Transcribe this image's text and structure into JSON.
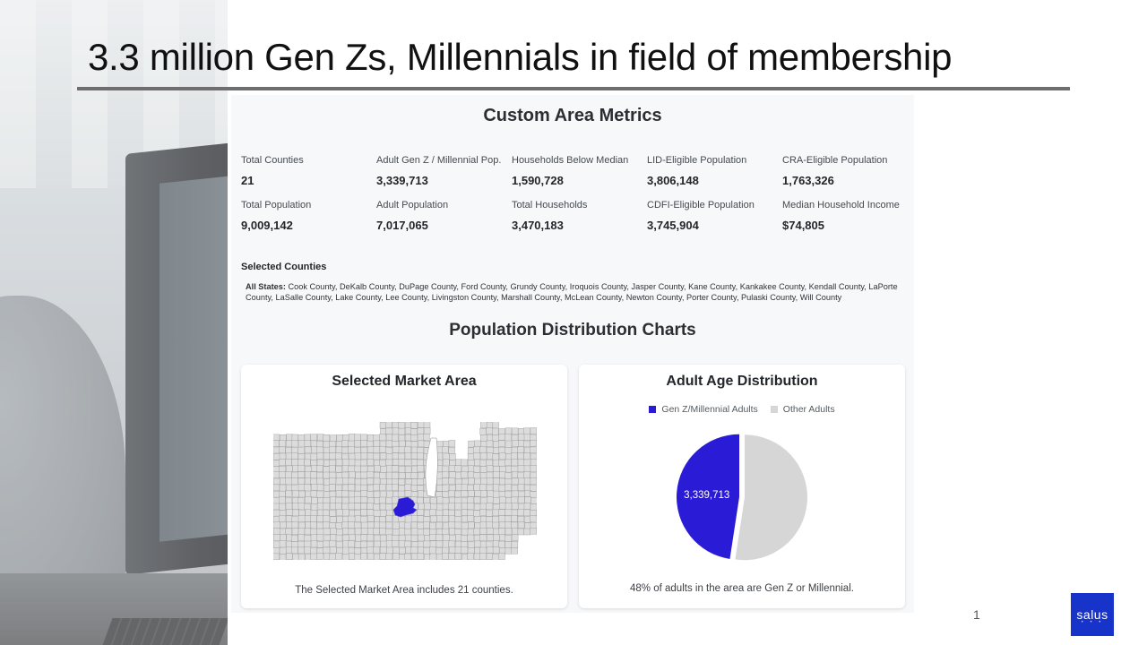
{
  "slide": {
    "title": "3.3 million Gen Zs, Millennials in field of membership",
    "page_number": "1",
    "logo_text": "salus"
  },
  "panel": {
    "heading": "Custom Area Metrics",
    "metrics": [
      {
        "label": "Total Counties",
        "value": "21"
      },
      {
        "label": "Adult Gen Z / Millennial Pop.",
        "value": "3,339,713"
      },
      {
        "label": "Households Below Median",
        "value": "1,590,728"
      },
      {
        "label": "LID-Eligible Population",
        "value": "3,806,148"
      },
      {
        "label": "CRA-Eligible Population",
        "value": "1,763,326"
      },
      {
        "label": "Total Population",
        "value": "9,009,142"
      },
      {
        "label": "Adult Population",
        "value": "7,017,065"
      },
      {
        "label": "Total Households",
        "value": "3,470,183"
      },
      {
        "label": "CDFI-Eligible Population",
        "value": "3,745,904"
      },
      {
        "label": "Median Household Income",
        "value": "$74,805"
      }
    ],
    "selected_counties_heading": "Selected Counties",
    "selected_counties_prefix": "All States:",
    "selected_counties_text": "Cook County, DeKalb County, DuPage County, Ford County, Grundy County, Iroquois County, Jasper County, Kane County, Kankakee County, Kendall County, LaPorte County, LaSalle County, Lake County, Lee County, Livingston County, Marshall County, McLean County, Newton County, Porter County, Pulaski County, Will County",
    "charts_heading": "Population Distribution Charts"
  },
  "map_card": {
    "title": "Selected Market Area",
    "caption": "The Selected Market Area includes 21 counties.",
    "highlight_color": "#2a1bd6",
    "base_color": "#dcdcdc"
  },
  "age_card": {
    "title": "Adult Age Distribution",
    "caption": "48% of adults in the area are Gen Z or Millennial.",
    "legend": [
      {
        "name": "Gen Z/Millennial Adults",
        "color": "#2a1bd6"
      },
      {
        "name": "Other Adults",
        "color": "#d6d6d6"
      }
    ],
    "slice_label": "3,339,713"
  },
  "chart_data": {
    "type": "pie",
    "title": "Adult Age Distribution",
    "labels": [
      "Gen Z/Millennial Adults",
      "Other Adults"
    ],
    "values": [
      3339713,
      3677352
    ],
    "colors": [
      "#2a1bd6",
      "#d6d6d6"
    ],
    "data_labels": [
      "3,339,713",
      ""
    ],
    "legend": "top"
  }
}
